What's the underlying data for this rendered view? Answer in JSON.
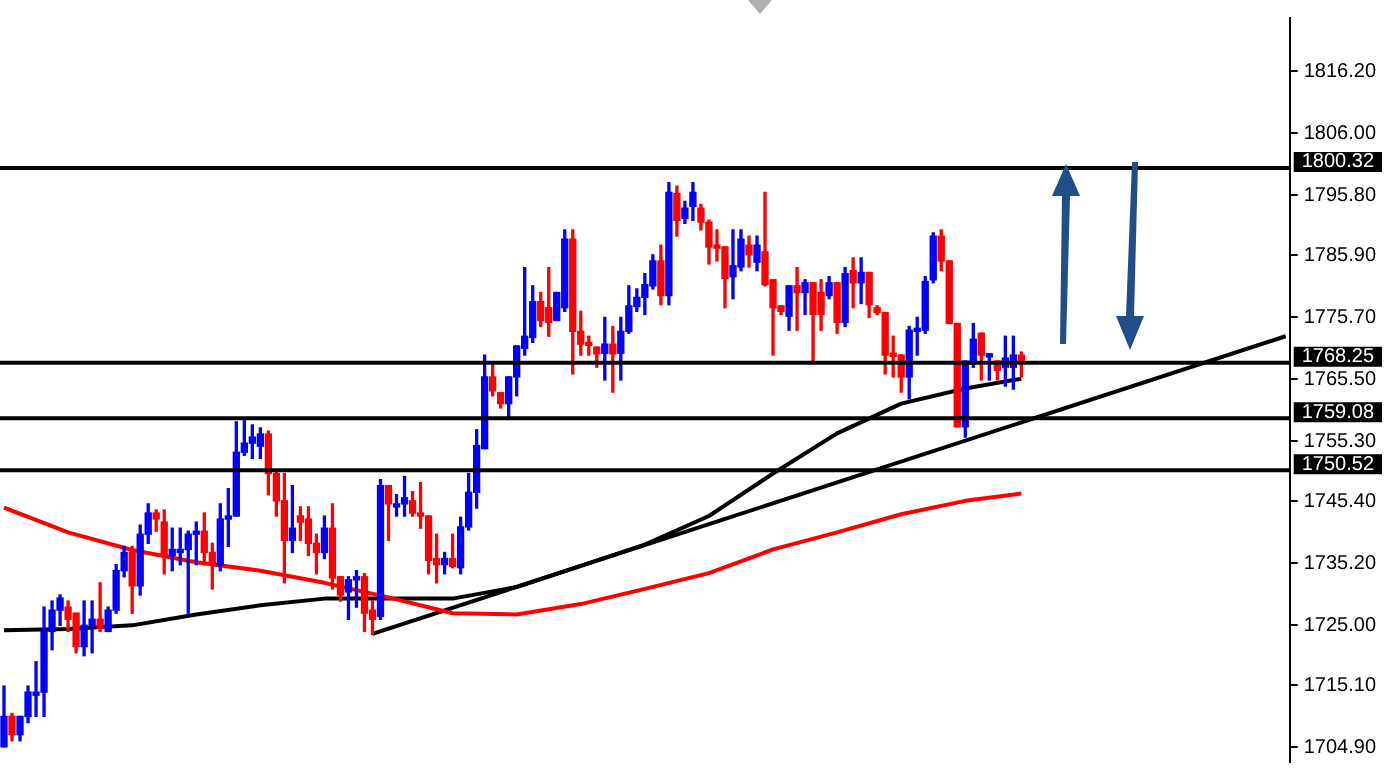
{
  "chart_data": {
    "type": "candlestick",
    "categories": [
      null,
      null,
      null,
      null,
      null,
      null,
      null,
      null,
      null,
      null,
      null,
      null,
      null,
      null,
      null,
      null,
      null,
      null,
      null,
      null,
      null,
      null,
      null,
      null,
      null,
      null,
      null,
      null,
      null,
      null,
      null,
      null,
      null,
      null,
      null,
      null,
      null,
      null,
      null,
      null,
      null,
      null,
      null,
      null,
      null,
      null,
      null,
      null,
      null,
      null,
      null,
      null,
      null,
      null,
      null,
      null,
      null,
      null,
      null,
      null,
      null,
      null,
      null,
      null,
      null,
      null,
      null,
      null,
      null,
      null,
      null,
      null,
      null,
      null,
      null,
      null,
      null,
      null,
      null,
      null,
      null,
      null,
      null,
      null,
      null,
      null,
      null,
      null,
      null,
      null,
      null,
      null,
      null,
      null,
      null,
      null,
      null,
      null,
      null,
      null,
      null,
      null,
      null,
      null,
      null,
      null,
      null,
      null,
      null,
      null,
      null,
      null,
      null,
      null,
      null,
      null,
      null,
      null,
      null,
      null,
      null,
      null,
      null,
      null,
      null,
      null,
      null,
      null,
      null,
      null,
      null,
      null,
      null,
      null,
      null,
      null,
      null,
      null,
      null,
      null,
      null,
      null,
      null,
      null,
      null,
      null,
      null,
      null,
      null,
      null,
      null,
      null,
      null,
      null,
      null,
      null,
      null,
      null,
      null,
      null,
      null
    ],
    "ohlc": [
      [
        1705,
        1715,
        1705,
        1710
      ],
      [
        1710,
        1710.5,
        1706,
        1707
      ],
      [
        1707,
        1710,
        1706,
        1710
      ],
      [
        1710,
        1715,
        1709,
        1714
      ],
      [
        1713.5,
        1719,
        1710,
        1714
      ],
      [
        1714,
        1728,
        1710,
        1724
      ],
      [
        1724,
        1729,
        1721,
        1727.5
      ],
      [
        1727.5,
        1730,
        1725,
        1729.5
      ],
      [
        1728,
        1729,
        1724,
        1726
      ],
      [
        1727,
        1727,
        1720.5,
        1721.5
      ],
      [
        1721.5,
        1729,
        1720,
        1725
      ],
      [
        1725,
        1729,
        1720.5,
        1726
      ],
      [
        1726,
        1732,
        1724,
        1724.5
      ],
      [
        1724,
        1728,
        1724,
        1727.5
      ],
      [
        1727.5,
        1735,
        1727,
        1734
      ],
      [
        1734,
        1738,
        1733,
        1737
      ],
      [
        1737,
        1738,
        1727,
        1731.5
      ],
      [
        1731.5,
        1741.5,
        1730,
        1740
      ],
      [
        1740,
        1745,
        1738.5,
        1743.5
      ],
      [
        1743.5,
        1744,
        1740.5,
        1742.5
      ],
      [
        1742,
        1744,
        1733.5,
        1736.5
      ],
      [
        1736.5,
        1741,
        1734,
        1737.5
      ],
      [
        1737,
        1741,
        1735,
        1737.5
      ],
      [
        1737.5,
        1740.5,
        1727,
        1740
      ],
      [
        1740,
        1742,
        1735,
        1740.5
      ],
      [
        1740.5,
        1743.5,
        1735,
        1737
      ],
      [
        1737,
        1738.5,
        1731,
        1735
      ],
      [
        1735,
        1745,
        1734,
        1742.5
      ],
      [
        1742.5,
        1747.5,
        1738,
        1743
      ],
      [
        1743,
        1758.5,
        1743,
        1753.5
      ],
      [
        1753.5,
        1759,
        1753,
        1755
      ],
      [
        1755,
        1758,
        1752.5,
        1756
      ],
      [
        1754.5,
        1757.5,
        1752.5,
        1756.5
      ],
      [
        1756.5,
        1757,
        1746.5,
        1750
      ],
      [
        1750,
        1750.5,
        1743,
        1745.5
      ],
      [
        1745.5,
        1750,
        1732,
        1739
      ],
      [
        1739,
        1748,
        1737,
        1741
      ],
      [
        1743,
        1744.5,
        1739,
        1742
      ],
      [
        1742.5,
        1744.5,
        1736.5,
        1738.5
      ],
      [
        1738.5,
        1740,
        1733.5,
        1737
      ],
      [
        1737,
        1743,
        1736,
        1741
      ],
      [
        1741,
        1745,
        1731,
        1732.8
      ],
      [
        1733,
        1733,
        1729,
        1730
      ],
      [
        1730.5,
        1733,
        1726,
        1732.5
      ],
      [
        1732.5,
        1734,
        1728,
        1733
      ],
      [
        1733,
        1733.5,
        1724,
        1727
      ],
      [
        1727.5,
        1729,
        1723.5,
        1726
      ],
      [
        1726.5,
        1749,
        1726,
        1748
      ],
      [
        1748,
        1748,
        1739,
        1745
      ],
      [
        1744.5,
        1746.5,
        1743,
        1745
      ],
      [
        1745,
        1749.5,
        1743,
        1746
      ],
      [
        1745.5,
        1747,
        1743,
        1743.5
      ],
      [
        1743.5,
        1748.5,
        1741,
        1743
      ],
      [
        1743,
        1743,
        1733.5,
        1735.7
      ],
      [
        1736,
        1740,
        1732,
        1735
      ],
      [
        1735,
        1737,
        1733.5,
        1736
      ],
      [
        1736,
        1740,
        1734.5,
        1734.7
      ],
      [
        1734.5,
        1742.8,
        1733.5,
        1741.2
      ],
      [
        1741.2,
        1750,
        1740.7,
        1746.9
      ],
      [
        1746.9,
        1757.2,
        1744.3,
        1754.6
      ],
      [
        1754.1,
        1769.5,
        1754.1,
        1765.9
      ],
      [
        1765.9,
        1768,
        1762.8,
        1763.6
      ],
      [
        1763.3,
        1763.3,
        1760.8,
        1761.5
      ],
      [
        1761.5,
        1765.9,
        1759.2,
        1765.9
      ],
      [
        1765.9,
        1771,
        1762.8,
        1771
      ],
      [
        1770.6,
        1783.9,
        1769.5,
        1772.6
      ],
      [
        1772.4,
        1780.9,
        1771.6,
        1778.3
      ],
      [
        1778.3,
        1779.8,
        1774.2,
        1775.2
      ],
      [
        1777.3,
        1783.9,
        1772.6,
        1774.9
      ],
      [
        1775.2,
        1779.8,
        1775.2,
        1779.8
      ],
      [
        1777.3,
        1790.1,
        1776.7,
        1788.6
      ],
      [
        1788.6,
        1790.1,
        1766.4,
        1773.4
      ],
      [
        1773.4,
        1776.7,
        1769.5,
        1771.3
      ],
      [
        1771.6,
        1772.6,
        1769.5,
        1771.1
      ],
      [
        1770.8,
        1770.8,
        1767.5,
        1769.7
      ],
      [
        1769.8,
        1775.7,
        1765.4,
        1771.3
      ],
      [
        1771.3,
        1774.2,
        1763.4,
        1769.7
      ],
      [
        1769.8,
        1775.7,
        1765.4,
        1773.4
      ],
      [
        1773.4,
        1780.9,
        1773.1,
        1777.6
      ],
      [
        1777.5,
        1780.4,
        1776.7,
        1779
      ],
      [
        1779,
        1782.9,
        1776.2,
        1781.1
      ],
      [
        1780.9,
        1786,
        1780.4,
        1785
      ],
      [
        1785,
        1787.6,
        1777.8,
        1779.3
      ],
      [
        1779.3,
        1797.9,
        1777.8,
        1796.3
      ],
      [
        1796.1,
        1797.3,
        1789.1,
        1791.7
      ],
      [
        1792,
        1794.8,
        1791.2,
        1793.7
      ],
      [
        1794,
        1797.9,
        1791.7,
        1796.3
      ],
      [
        1793.7,
        1794.3,
        1790.1,
        1791.4
      ],
      [
        1791.4,
        1791.7,
        1784.5,
        1787.3
      ],
      [
        1787.6,
        1790.1,
        1785,
        1787.1
      ],
      [
        1787.3,
        1787.3,
        1777.3,
        1782.1
      ],
      [
        1782.4,
        1790.1,
        1778.8,
        1784.2
      ],
      [
        1784,
        1790.1,
        1783.4,
        1788.6
      ],
      [
        1787.6,
        1789.1,
        1784,
        1786
      ],
      [
        1784.8,
        1789.1,
        1783.4,
        1787.6
      ],
      [
        1786.5,
        1796.3,
        1780.9,
        1781.1
      ],
      [
        1781.9,
        1781.9,
        1769.5,
        1777.3
      ],
      [
        1777.6,
        1777.6,
        1776.2,
        1776.7
      ],
      [
        1775.9,
        1780.9,
        1773.6,
        1780.9
      ],
      [
        1780.9,
        1783.9,
        1773.6,
        1779.8
      ],
      [
        1779.8,
        1781.9,
        1776.2,
        1781.4
      ],
      [
        1781.4,
        1781.4,
        1768.5,
        1776.2
      ],
      [
        1779.8,
        1781.9,
        1773.6,
        1776.2
      ],
      [
        1779.3,
        1782.4,
        1778.8,
        1781.4
      ],
      [
        1781.4,
        1781.4,
        1773.1,
        1774.9
      ],
      [
        1774.9,
        1783.9,
        1774.2,
        1782.9
      ],
      [
        1783.4,
        1785.5,
        1777.3,
        1781.4
      ],
      [
        1781.4,
        1785.5,
        1778,
        1783.1
      ],
      [
        1783.1,
        1783.1,
        1775.7,
        1777.8
      ],
      [
        1777.3,
        1777.6,
        1776.2,
        1776.5
      ],
      [
        1776.5,
        1776.5,
        1766.4,
        1769.5
      ],
      [
        1769.8,
        1772.6,
        1765.9,
        1769.3
      ],
      [
        1769.5,
        1769.5,
        1763.4,
        1765.9
      ],
      [
        1765.9,
        1774.2,
        1762.3,
        1773.6
      ],
      [
        1773.4,
        1775.7,
        1769.5,
        1773.9
      ],
      [
        1773.6,
        1782.4,
        1773.1,
        1781.6
      ],
      [
        1781.9,
        1789.6,
        1781.4,
        1789.1
      ],
      [
        1789.1,
        1790.1,
        1783.4,
        1785
      ],
      [
        1785,
        1785,
        1774.7,
        1774.7
      ],
      [
        1774.7,
        1774.7,
        1757.7,
        1757.7
      ],
      [
        1757.7,
        1768.5,
        1756,
        1768.5
      ],
      [
        1768,
        1774.7,
        1767.5,
        1772.1
      ],
      [
        1773.1,
        1773.1,
        1765.4,
        1769.5
      ],
      [
        1769.2,
        1769.7,
        1765.4,
        1769.7
      ],
      [
        1768.5,
        1768.5,
        1765.4,
        1767
      ],
      [
        1767.5,
        1772.6,
        1764.4,
        1769
      ],
      [
        1767.5,
        1772.6,
        1763.9,
        1769.5
      ],
      [
        1769.5,
        1770,
        1765.9,
        1768.5
      ],
      null,
      null,
      null,
      null,
      null,
      null,
      null,
      null,
      null,
      null,
      null,
      null,
      null,
      null,
      null,
      null,
      null,
      null,
      null,
      null,
      null,
      null,
      null,
      null,
      null,
      null,
      null,
      null,
      null,
      null,
      null,
      null,
      null
    ],
    "colors": [
      "#0000ff",
      "#ff0000",
      "#0000ff",
      "#0000ff",
      "#0000ff",
      "#0000ff",
      "#0000ff",
      "#0000ff",
      "#ff0000",
      "#ff0000",
      "#0000ff",
      "#0000ff",
      "#ff0000",
      "#0000ff",
      "#0000ff",
      "#0000ff",
      "#ff0000",
      "#0000ff",
      "#0000ff",
      "#ff0000",
      "#ff0000",
      "#0000ff",
      "#0000ff",
      "#0000ff",
      "#0000ff",
      "#ff0000",
      "#ff0000",
      "#0000ff",
      "#0000ff",
      "#0000ff",
      "#0000ff",
      "#0000ff",
      "#0000ff",
      "#ff0000",
      "#ff0000",
      "#ff0000",
      "#0000ff",
      "#ff0000",
      "#ff0000",
      "#ff0000",
      "#0000ff",
      "#ff0000",
      "#ff0000",
      "#0000ff",
      "#0000ff",
      "#ff0000",
      "#ff0000",
      "#0000ff",
      "#ff0000",
      "#0000ff",
      "#0000ff",
      "#ff0000",
      "#ff0000",
      "#ff0000",
      "#ff0000",
      "#0000ff",
      "#ff0000",
      "#0000ff",
      "#0000ff",
      "#0000ff",
      "#0000ff",
      "#ff0000",
      "#ff0000",
      "#0000ff",
      "#0000ff",
      "#0000ff",
      "#0000ff",
      "#ff0000",
      "#ff0000",
      "#0000ff",
      "#0000ff",
      "#ff0000",
      "#ff0000",
      "#ff0000",
      "#ff0000",
      "#0000ff",
      "#ff0000",
      "#0000ff",
      "#0000ff",
      "#0000ff",
      "#0000ff",
      "#0000ff",
      "#ff0000",
      "#0000ff",
      "#ff0000",
      "#0000ff",
      "#0000ff",
      "#ff0000",
      "#ff0000",
      "#ff0000",
      "#ff0000",
      "#0000ff",
      "#0000ff",
      "#ff0000",
      "#0000ff",
      "#ff0000",
      "#ff0000",
      "#ff0000",
      "#0000ff",
      "#ff0000",
      "#0000ff",
      "#ff0000",
      "#ff0000",
      "#0000ff",
      "#ff0000",
      "#0000ff",
      "#ff0000",
      "#0000ff",
      "#ff0000",
      "#ff0000",
      "#ff0000",
      "#ff0000",
      "#ff0000",
      "#0000ff",
      "#0000ff",
      "#0000ff",
      "#0000ff",
      "#ff0000",
      "#ff0000",
      "#ff0000",
      "#0000ff",
      "#0000ff",
      "#ff0000",
      "#0000ff",
      "#ff0000",
      "#0000ff",
      "#0000ff",
      "#ff0000",
      null,
      null,
      null,
      null,
      null,
      null,
      null,
      null,
      null,
      null,
      null,
      null,
      null,
      null,
      null,
      null,
      null,
      null,
      null,
      null,
      null,
      null,
      null,
      null,
      null,
      null,
      null,
      null,
      null,
      null,
      null,
      null,
      null
    ],
    "series": [
      {
        "type": "line",
        "color": "#ff0000",
        "values": [
          1744.4,
          null,
          null,
          null,
          null,
          null,
          null,
          null,
          1740.3,
          null,
          null,
          null,
          null,
          null,
          null,
          null,
          1737.4,
          null,
          null,
          null,
          null,
          null,
          null,
          null,
          1735.4,
          null,
          null,
          null,
          null,
          null,
          null,
          null,
          1734,
          null,
          null,
          null,
          null,
          null,
          null,
          null,
          1732,
          null,
          null,
          null,
          null,
          null,
          null,
          null,
          1729.6,
          null,
          null,
          null,
          null,
          null,
          null,
          null,
          1727,
          null,
          null,
          null,
          null,
          null,
          null,
          null,
          1726.8,
          null,
          null,
          null,
          null,
          null,
          null,
          null,
          1728.5,
          null,
          null,
          null,
          null,
          null,
          null,
          null,
          1731,
          null,
          null,
          null,
          null,
          null,
          null,
          null,
          1733.6,
          null,
          null,
          null,
          null,
          null,
          null,
          null,
          1737.5,
          null,
          null,
          null,
          null,
          null,
          null,
          null,
          1740.3,
          null,
          null,
          null,
          null,
          null,
          null,
          null,
          1743.3,
          null,
          null,
          null,
          null,
          null,
          null,
          null,
          1745.5,
          null,
          null,
          null,
          null,
          null,
          null,
          1746.7,
          null,
          null,
          null,
          null,
          null,
          null,
          null,
          null,
          null,
          null,
          null,
          null,
          null,
          null,
          null,
          null,
          null,
          null,
          null,
          null,
          null,
          null,
          null,
          null,
          null,
          null,
          null,
          null,
          null,
          null,
          null,
          null,
          null
        ]
      },
      {
        "type": "line",
        "color": "#000000",
        "values": [
          1724.2,
          null,
          null,
          null,
          null,
          null,
          null,
          null,
          1724.4,
          null,
          null,
          null,
          null,
          null,
          null,
          null,
          1725,
          null,
          null,
          null,
          null,
          null,
          null,
          null,
          1726.8,
          null,
          null,
          null,
          null,
          null,
          null,
          null,
          1728.3,
          null,
          null,
          null,
          null,
          null,
          null,
          null,
          1729.4,
          null,
          null,
          null,
          null,
          null,
          null,
          null,
          1729.4,
          null,
          null,
          null,
          null,
          null,
          null,
          null,
          1729.4,
          null,
          null,
          null,
          null,
          null,
          null,
          null,
          1731.3,
          null,
          null,
          null,
          null,
          null,
          null,
          null,
          1734.8,
          null,
          null,
          null,
          null,
          null,
          null,
          null,
          1738.3,
          null,
          null,
          null,
          null,
          null,
          null,
          null,
          1743,
          null,
          null,
          null,
          null,
          null,
          null,
          null,
          1750,
          null,
          null,
          null,
          null,
          null,
          null,
          null,
          1756.6,
          null,
          null,
          null,
          null,
          null,
          null,
          null,
          1761.5,
          null,
          null,
          null,
          null,
          null,
          null,
          null,
          1764,
          null,
          null,
          null,
          null,
          null,
          null,
          1765.6,
          null,
          null,
          null,
          null,
          null,
          null,
          null,
          null,
          null,
          null,
          null,
          null,
          null,
          null,
          null,
          null,
          null,
          null,
          null,
          null,
          null,
          null,
          null,
          null,
          null,
          null,
          null,
          null,
          null,
          null,
          null,
          null,
          null
        ]
      },
      {
        "type": "line",
        "color": "#000000",
        "values": [
          null,
          null,
          null,
          null,
          null,
          null,
          null,
          null,
          null,
          null,
          null,
          null,
          null,
          null,
          null,
          null,
          null,
          null,
          null,
          null,
          null,
          null,
          null,
          null,
          null,
          null,
          null,
          null,
          null,
          null,
          null,
          null,
          null,
          null,
          null,
          null,
          null,
          null,
          null,
          null,
          null,
          null,
          null,
          null,
          null,
          null,
          1723.6,
          null,
          null,
          null,
          null,
          null,
          null,
          null,
          null,
          null,
          null,
          null,
          null,
          null,
          null,
          null,
          null,
          null,
          null,
          null,
          null,
          null,
          null,
          null,
          null,
          null,
          null,
          null,
          null,
          null,
          null,
          null,
          null,
          null,
          null,
          null,
          null,
          null,
          null,
          null,
          null,
          null,
          null,
          null,
          null,
          null,
          null,
          null,
          null,
          null,
          null,
          null,
          null,
          null,
          null,
          null,
          null,
          null,
          null,
          null,
          null,
          null,
          null,
          null,
          null,
          null,
          null,
          null,
          null,
          null,
          null,
          null,
          null,
          null,
          null,
          null,
          null,
          null,
          null,
          null,
          null,
          null,
          null,
          null,
          null,
          null,
          null,
          null,
          null,
          null,
          null,
          null,
          null,
          null,
          null,
          null,
          null,
          null,
          null,
          null,
          null,
          null,
          null,
          null,
          null,
          null,
          null,
          null,
          null,
          null,
          null,
          null,
          null,
          null,
          1772.6
        ]
      }
    ],
    "ylim": [
      1702.5,
      1825
    ],
    "yticks": [
      {
        "value": 1816.2,
        "label": "1816.20"
      },
      {
        "value": 1806,
        "label": "1806.00"
      },
      {
        "value": 1795.8,
        "label": "1795.80"
      },
      {
        "value": 1785.9,
        "label": "1785.90"
      },
      {
        "value": 1775.7,
        "label": "1775.70"
      },
      {
        "value": 1765.5,
        "label": "1765.50"
      },
      {
        "value": 1755.3,
        "label": "1755.30"
      },
      {
        "value": 1745.4,
        "label": "1745.40"
      },
      {
        "value": 1735.2,
        "label": "1735.20"
      },
      {
        "value": 1725,
        "label": "1725.00"
      },
      {
        "value": 1715.1,
        "label": "1715.10"
      },
      {
        "value": 1704.9,
        "label": "1704.90"
      }
    ],
    "ref_lines": [
      {
        "axis": "y",
        "value": 1800.32,
        "label": "1800.32"
      },
      {
        "axis": "y",
        "value": 1768.25,
        "label": "1768.25"
      },
      {
        "axis": "y",
        "value": 1759.08,
        "label": "1759.08"
      },
      {
        "axis": "y",
        "value": 1750.52,
        "label": "1750.52"
      }
    ],
    "tick_labels": "y",
    "grid": false,
    "legend": false,
    "marker": "none"
  }
}
